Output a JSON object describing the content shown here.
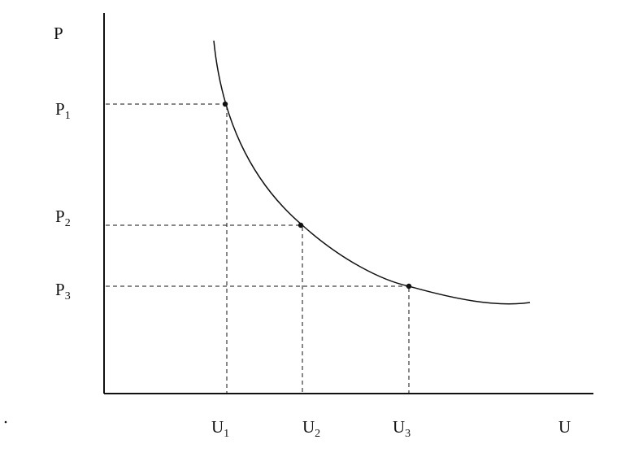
{
  "axes": {
    "y_label": "P",
    "x_label": "U"
  },
  "y_ticks": [
    {
      "main": "P",
      "sub": "1"
    },
    {
      "main": "P",
      "sub": "2"
    },
    {
      "main": "P",
      "sub": "3"
    }
  ],
  "x_ticks": [
    {
      "main": "U",
      "sub": "1"
    },
    {
      "main": "U",
      "sub": "2"
    },
    {
      "main": "U",
      "sub": "3"
    }
  ],
  "colors": {
    "ink": "#111111",
    "background": "#ffffff"
  }
}
